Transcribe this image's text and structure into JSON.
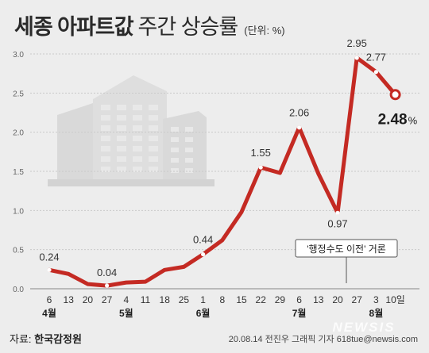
{
  "header": {
    "title_bold": "세종 아파트값",
    "title_light": "주간 상승률",
    "unit": "(단위: %)"
  },
  "footer": {
    "source_label": "자료:",
    "source_name": "한국감정원",
    "credit": "20.08.14 전진우 그래픽 기자 618tue@newsis.com",
    "watermark": "NEWSIS"
  },
  "colors": {
    "line": "#c42a23",
    "background": "#ededed",
    "building": "#d9d9d9",
    "text": "#222222"
  },
  "chart_data": {
    "type": "line",
    "title": "세종 아파트값 주간 상승률",
    "unit": "(단위: %)",
    "ylim": [
      0,
      3.0
    ],
    "yticks": [
      "0.0",
      "0.5",
      "1.0",
      "1.5",
      "2.0",
      "2.5",
      "3.0"
    ],
    "grid": true,
    "x": [
      "6",
      "13",
      "20",
      "27",
      "4",
      "11",
      "18",
      "25",
      "1",
      "8",
      "15",
      "22",
      "29",
      "6",
      "13",
      "20",
      "27",
      "3",
      "10일"
    ],
    "values": [
      0.24,
      0.19,
      0.06,
      0.04,
      0.08,
      0.09,
      0.24,
      0.28,
      0.44,
      0.62,
      0.98,
      1.55,
      1.48,
      2.06,
      1.47,
      0.97,
      2.95,
      2.77,
      2.48
    ],
    "value_labels": [
      "0.24",
      null,
      null,
      "0.04",
      null,
      null,
      null,
      null,
      "0.44",
      null,
      null,
      "1.55",
      null,
      "2.06",
      null,
      "0.97",
      "2.95",
      "2.77",
      "2.48"
    ],
    "highlight": {
      "value": "2.48",
      "suffix": "%"
    },
    "months": [
      "4월",
      "5월",
      "6월",
      "7월",
      "8월"
    ],
    "annotation": {
      "text": "'행정수도 이전' 거론"
    }
  }
}
